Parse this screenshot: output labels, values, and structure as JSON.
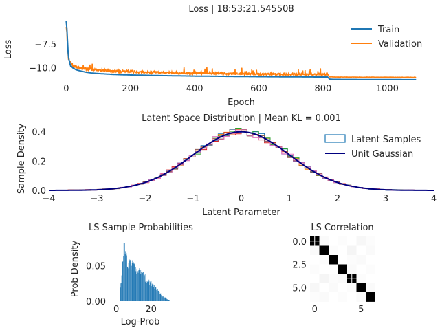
{
  "chart_data": [
    {
      "type": "line",
      "title": "Loss | 18:53:21.545508",
      "xlabel": "Epoch",
      "ylabel": "Loss",
      "xlim": [
        -20,
        1100
      ],
      "ylim": [
        -11.4,
        -4.7
      ],
      "xticks": [
        0,
        200,
        400,
        600,
        800,
        1000
      ],
      "yticks": [
        -7.5,
        -10.0
      ],
      "ytick_labels": [
        "−7.5",
        "−10.0"
      ],
      "legend": "top-right",
      "grid": false,
      "series": [
        {
          "name": "Train",
          "color": "#1f77b4",
          "x": [
            0,
            3,
            6,
            10,
            15,
            20,
            30,
            40,
            60,
            80,
            100,
            150,
            200,
            300,
            400,
            500,
            600,
            700,
            800,
            815,
            820,
            830,
            900,
            1000,
            1090
          ],
          "y": [
            -5.0,
            -6.5,
            -8.5,
            -9.4,
            -9.8,
            -10.0,
            -10.2,
            -10.3,
            -10.45,
            -10.55,
            -10.6,
            -10.7,
            -10.75,
            -10.82,
            -10.87,
            -10.9,
            -10.93,
            -10.95,
            -10.97,
            -10.97,
            -11.2,
            -11.22,
            -11.23,
            -11.24,
            -11.25
          ]
        },
        {
          "name": "Validation",
          "color": "#ff7f0e",
          "x": [
            0,
            3,
            6,
            10,
            20,
            30,
            40,
            60,
            80,
            100,
            150,
            200,
            300,
            400,
            500,
            600,
            700,
            800,
            815,
            820,
            830,
            900,
            1000,
            1090
          ],
          "y": [
            -5.6,
            -7.0,
            -8.8,
            -9.4,
            -9.8,
            -9.9,
            -10.0,
            -10.1,
            -10.2,
            -10.25,
            -10.35,
            -10.4,
            -10.5,
            -10.55,
            -10.6,
            -10.65,
            -10.68,
            -10.7,
            -10.7,
            -10.95,
            -10.97,
            -10.98,
            -10.99,
            -11.0
          ]
        }
      ]
    },
    {
      "type": "histogram",
      "title": "Latent Space Distribution | Mean KL = 0.001",
      "xlabel": "Latent Parameter",
      "ylabel": "Sample Density",
      "xlim": [
        -4,
        4
      ],
      "ylim": [
        0,
        0.44
      ],
      "xticks": [
        -4,
        -3,
        -2,
        -1,
        0,
        1,
        2,
        3,
        4
      ],
      "xtick_labels": [
        "−4",
        "−3",
        "−2",
        "−1",
        "0",
        "1",
        "2",
        "3",
        "4"
      ],
      "yticks": [
        0.0,
        0.2,
        0.4
      ],
      "ytick_labels": [
        "0.0",
        "0.2",
        "0.4"
      ],
      "legend": "top-right",
      "legend_entries": [
        {
          "name": "Latent Samples",
          "color": "#1f77b4",
          "style": "box"
        },
        {
          "name": "Unit Gaussian",
          "color": "#000080",
          "style": "line"
        }
      ],
      "reference_curve": {
        "name": "Unit Gaussian",
        "mean": 0,
        "std": 1,
        "color": "#000080"
      },
      "sample_colors": [
        "#1f77b4",
        "#ff7f0e",
        "#2ca02c",
        "#d62728",
        "#9467bd",
        "#8c564b",
        "#e377c2"
      ]
    },
    {
      "type": "histogram",
      "title": "LS Sample Probabilities",
      "xlabel": "Log-Prob",
      "ylabel": "Prob Density",
      "color": "#1f77b4",
      "xlim": [
        -4,
        34
      ],
      "ylim": [
        0,
        0.09
      ],
      "xticks": [
        0,
        20
      ],
      "yticks": [
        0.0,
        0.05
      ],
      "ytick_labels": [
        "0.00",
        "0.05"
      ],
      "bin_width": 0.25,
      "range": [
        1.5,
        31
      ]
    },
    {
      "type": "heatmap",
      "title": "LS Correlation",
      "size": 7,
      "xticks": [
        0,
        5
      ],
      "xtick_labels": [
        "0",
        "5"
      ],
      "yticks": [
        0.0,
        2.5,
        5.0
      ],
      "ytick_labels": [
        "0.0",
        "2.5",
        "5.0"
      ],
      "matrix": [
        [
          1.0,
          0.02,
          0.0,
          0.01,
          0.0,
          0.03,
          0.01
        ],
        [
          0.02,
          1.0,
          0.01,
          0.0,
          0.04,
          0.0,
          0.02
        ],
        [
          0.0,
          0.01,
          1.0,
          0.0,
          0.01,
          0.02,
          0.0
        ],
        [
          0.01,
          0.0,
          0.0,
          1.0,
          0.02,
          0.0,
          0.01
        ],
        [
          0.0,
          0.04,
          0.01,
          0.02,
          1.0,
          0.01,
          0.0
        ],
        [
          0.03,
          0.0,
          0.02,
          0.0,
          0.01,
          1.0,
          0.02
        ],
        [
          0.01,
          0.02,
          0.0,
          0.01,
          0.0,
          0.02,
          1.0
        ]
      ]
    }
  ]
}
